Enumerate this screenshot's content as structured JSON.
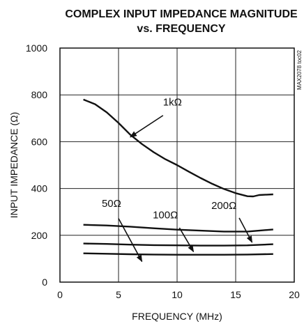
{
  "chart_data": {
    "type": "line",
    "title_line1": "COMPLEX INPUT IMPEDANCE MAGNITUDE",
    "title_line2": "vs. FREQUENCY",
    "xlabel": "FREQUENCY (MHz)",
    "ylabel": "INPUT IMPEDANCE (Ω)",
    "xlim": [
      0,
      20
    ],
    "ylim": [
      0,
      1000
    ],
    "xticks": [
      0,
      5,
      10,
      15,
      20
    ],
    "yticks": [
      0,
      200,
      400,
      600,
      800,
      1000
    ],
    "xtick_labels": [
      "0",
      "5",
      "10",
      "15",
      "20"
    ],
    "ytick_labels": [
      "0",
      "200",
      "400",
      "600",
      "800",
      "1000"
    ],
    "grid": true,
    "part_id": "MAX2078 toc02",
    "series": [
      {
        "name": "1kΩ",
        "points": [
          [
            2,
            780
          ],
          [
            3,
            760
          ],
          [
            4,
            725
          ],
          [
            5,
            680
          ],
          [
            6,
            630
          ],
          [
            7,
            590
          ],
          [
            8,
            555
          ],
          [
            9,
            525
          ],
          [
            10,
            500
          ],
          [
            11,
            472
          ],
          [
            12,
            445
          ],
          [
            13,
            420
          ],
          [
            14,
            398
          ],
          [
            15,
            380
          ],
          [
            16,
            367
          ],
          [
            16.5,
            366
          ],
          [
            17,
            372
          ],
          [
            18.2,
            375
          ]
        ]
      },
      {
        "name": "200Ω",
        "points": [
          [
            2,
            245
          ],
          [
            4,
            242
          ],
          [
            6,
            237
          ],
          [
            8,
            230
          ],
          [
            10,
            224
          ],
          [
            12,
            220
          ],
          [
            14,
            216
          ],
          [
            16,
            216
          ],
          [
            17,
            220
          ],
          [
            18.2,
            225
          ]
        ]
      },
      {
        "name": "100Ω",
        "points": [
          [
            2,
            165
          ],
          [
            4,
            163
          ],
          [
            6,
            160
          ],
          [
            8,
            158
          ],
          [
            10,
            157
          ],
          [
            12,
            156
          ],
          [
            14,
            156
          ],
          [
            16,
            157
          ],
          [
            18.2,
            162
          ]
        ]
      },
      {
        "name": "50Ω",
        "points": [
          [
            2,
            123
          ],
          [
            4,
            121
          ],
          [
            6,
            119
          ],
          [
            8,
            118
          ],
          [
            10,
            117
          ],
          [
            12,
            117
          ],
          [
            14,
            117
          ],
          [
            16,
            118
          ],
          [
            18.2,
            120
          ]
        ]
      }
    ],
    "annotations": [
      {
        "text": "1kΩ",
        "label_at": [
          9.6,
          755
        ],
        "arrow_from": [
          8.8,
          712
        ],
        "arrow_to": [
          6.0,
          620
        ]
      },
      {
        "text": "50Ω",
        "label_at": [
          4.4,
          322
        ],
        "arrow_from": [
          5.0,
          272
        ],
        "arrow_to": [
          7.0,
          88
        ]
      },
      {
        "text": "100Ω",
        "label_at": [
          9.0,
          272
        ],
        "arrow_from": [
          10.2,
          232
        ],
        "arrow_to": [
          11.4,
          130
        ]
      },
      {
        "text": "200Ω",
        "label_at": [
          14.0,
          312
        ],
        "arrow_from": [
          15.3,
          274
        ],
        "arrow_to": [
          16.4,
          170
        ]
      }
    ]
  }
}
